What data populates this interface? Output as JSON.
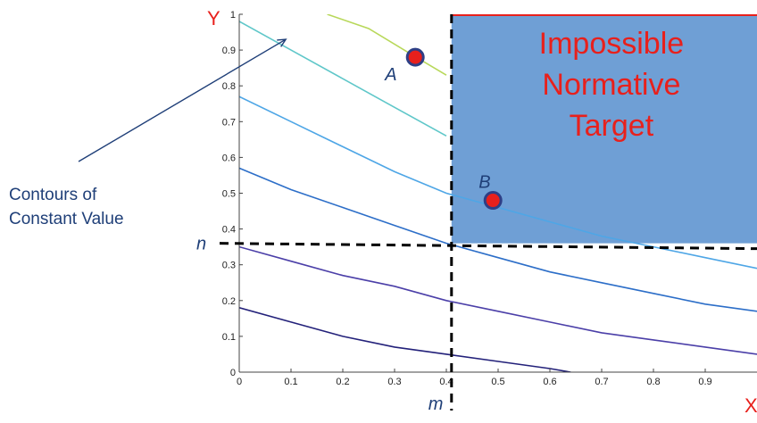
{
  "chart_data": {
    "type": "line",
    "title": "",
    "xlabel": "X",
    "ylabel": "Y",
    "xlim": [
      0,
      1
    ],
    "ylim": [
      0,
      1
    ],
    "x_ticks": [
      "0",
      "0.1",
      "0.2",
      "0.3",
      "0.4",
      "0.5",
      "0.6",
      "0.7",
      "0.8",
      "0.9"
    ],
    "y_ticks": [
      "0",
      "0.1",
      "0.2",
      "0.3",
      "0.4",
      "0.5",
      "0.6",
      "0.7",
      "0.8",
      "0.9",
      "1"
    ],
    "grid": false,
    "contours": [
      {
        "color": "#23217a",
        "x": [
          0,
          0.1,
          0.2,
          0.3,
          0.4,
          0.5,
          0.6,
          0.64
        ],
        "y": [
          0.18,
          0.14,
          0.1,
          0.07,
          0.05,
          0.03,
          0.01,
          0.0
        ]
      },
      {
        "color": "#4b3fa8",
        "x": [
          0,
          0.1,
          0.2,
          0.3,
          0.4,
          0.5,
          0.6,
          0.7,
          0.8,
          0.9,
          1.0
        ],
        "y": [
          0.35,
          0.31,
          0.27,
          0.24,
          0.2,
          0.17,
          0.14,
          0.11,
          0.09,
          0.07,
          0.05
        ]
      },
      {
        "color": "#2c6ec8",
        "x": [
          0,
          0.1,
          0.2,
          0.3,
          0.4,
          0.5,
          0.6,
          0.7,
          0.8,
          0.9,
          1.0
        ],
        "y": [
          0.57,
          0.51,
          0.46,
          0.41,
          0.36,
          0.32,
          0.28,
          0.25,
          0.22,
          0.19,
          0.17
        ]
      },
      {
        "color": "#4ea6e6",
        "x": [
          0,
          0.1,
          0.2,
          0.3,
          0.4,
          0.5,
          0.6,
          0.7,
          0.8,
          0.9,
          1.0
        ],
        "y": [
          0.77,
          0.7,
          0.63,
          0.56,
          0.5,
          0.46,
          0.42,
          0.38,
          0.35,
          0.32,
          0.29
        ]
      },
      {
        "color": "#5fc7c9",
        "x": [
          0,
          0.1,
          0.2,
          0.3,
          0.4
        ],
        "y": [
          0.98,
          0.9,
          0.82,
          0.74,
          0.66
        ]
      },
      {
        "color": "#b8d85a",
        "x": [
          0.17,
          0.25,
          0.33,
          0.4
        ],
        "y": [
          1.0,
          0.96,
          0.89,
          0.83
        ]
      }
    ],
    "points": [
      {
        "label": "A",
        "x": 0.34,
        "y": 0.88,
        "color": "#e8201c"
      },
      {
        "label": "B",
        "x": 0.49,
        "y": 0.48,
        "color": "#e8201c"
      }
    ],
    "threshold": {
      "x_label": "m",
      "x": 0.41,
      "y_label": "n",
      "y": 0.36
    },
    "region": {
      "lines": [
        "Impossible",
        "Normative",
        "Target"
      ],
      "fill": "#6f9fd5",
      "text_color": "#e8201c"
    },
    "annotation": {
      "lines": [
        "Contours of",
        "Constant Value"
      ],
      "color": "#1f3f78",
      "target_x": 0.09,
      "target_y": 0.93
    },
    "colors": {
      "axis_letter": "#e8201c",
      "threshold_label": "#1f3f78"
    }
  }
}
